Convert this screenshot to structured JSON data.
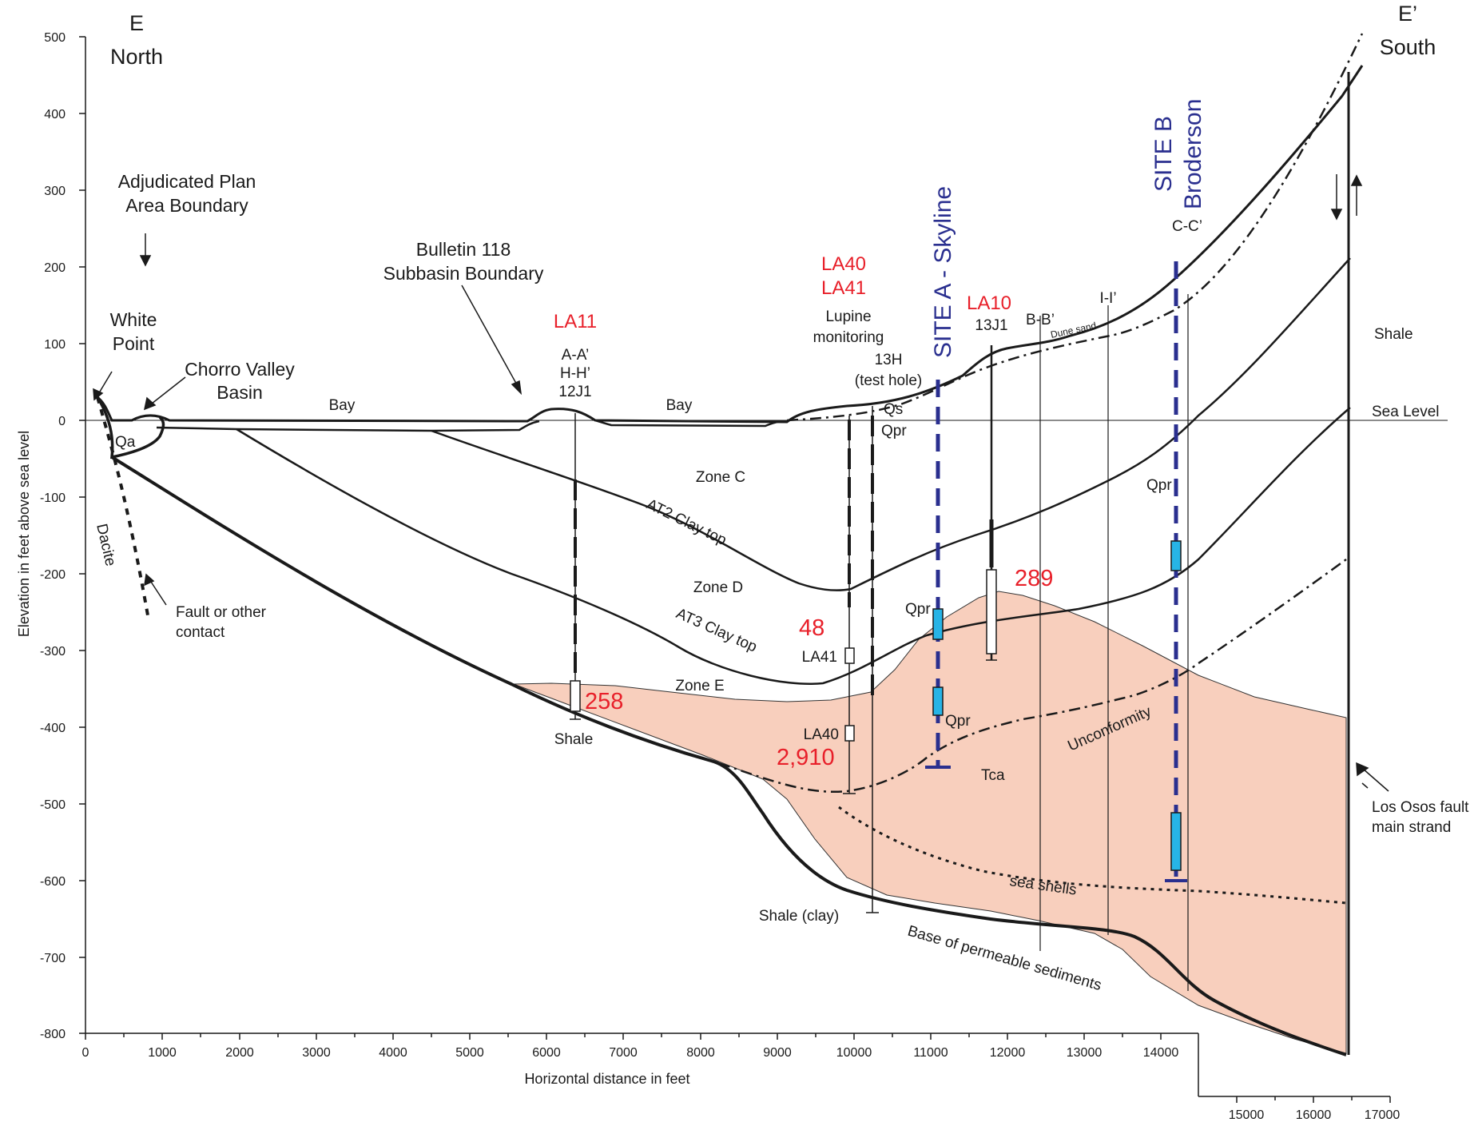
{
  "section": {
    "start_label": "E",
    "start_direction": "North",
    "end_label": "E’",
    "end_direction": "South"
  },
  "axes": {
    "x_title": "Horizontal distance in feet",
    "y_title": "Elevation in feet above sea level",
    "x_ticks": [
      "0",
      "1000",
      "2000",
      "3000",
      "4000",
      "5000",
      "6000",
      "7000",
      "8000",
      "9000",
      "10000",
      "11000",
      "12000",
      "13000",
      "14000"
    ],
    "x_ticks_ext": [
      "15000",
      "16000",
      "17000"
    ],
    "y_ticks": [
      "500",
      "400",
      "300",
      "200",
      "100",
      "0",
      "-100",
      "-200",
      "-300",
      "-400",
      "-500",
      "-600",
      "-700",
      "-800"
    ]
  },
  "annotations": {
    "adjudicated_1": "Adjudicated Plan",
    "adjudicated_2": "Area Boundary",
    "bulletin_1": "Bulletin 118",
    "bulletin_2": "Subbasin Boundary",
    "white_1": "White",
    "white_2": "Point",
    "chorro_1": "Chorro Valley",
    "chorro_2": "Basin",
    "bay_1": "Bay",
    "bay_2": "Bay",
    "qa": "Qa",
    "dacite": "Dacite",
    "fault_1": "Fault or other",
    "fault_2": "contact",
    "zone_c": "Zone C",
    "zone_d": "Zone D",
    "zone_e": "Zone E",
    "at2": "AT2 Clay top",
    "at3": "AT3 Clay top",
    "shale_well": "Shale",
    "shale_clay": "Shale (clay)",
    "shale_right": "Shale",
    "sea_level": "Sea Level",
    "qs": "Qs",
    "qpr_1": "Qpr",
    "qpr_2": "Qpr",
    "qpr_3": "Qpr",
    "qpr_4": "Qpr",
    "tca": "Tca",
    "unconformity": "Unconformity",
    "sea_shells": "sea shells",
    "base_permeable": "Base of permeable sediments",
    "dune_sand": "Dune sand",
    "los_osos_1": "Los Osos fault",
    "los_osos_2": "main strand",
    "lupine_1": "Lupine",
    "lupine_2": "monitoring",
    "h13_1": "13H",
    "h13_2": "(test hole)",
    "aa": "A-A’",
    "hh": "H-H’",
    "j12": "12J1",
    "j13": "13J1",
    "bb": "B-B’",
    "ii": "I-I’",
    "cc": "C-C’",
    "la41_box": "LA41",
    "la40_box": "LA40"
  },
  "wells": {
    "la11": "LA11",
    "la40": "LA40",
    "la41": "LA41",
    "la10": "LA10"
  },
  "values": {
    "v258": "258",
    "v48": "48",
    "v2910": "2,910",
    "v289": "289"
  },
  "sites": {
    "site_a": "SITE A - Skyline",
    "site_b": "SITE B",
    "site_b_name": "Broderson"
  },
  "colors": {
    "bedrock_fill": "#f8cfbd",
    "well_label": "#e8202a",
    "site_line": "#2a2f8f",
    "screen": "#27b4e6"
  }
}
